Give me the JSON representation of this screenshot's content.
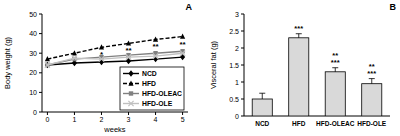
{
  "chart_data": [
    {
      "type": "line",
      "title": "A",
      "x": [
        0,
        1,
        2,
        3,
        4,
        5
      ],
      "xlim": [
        -0.2,
        5.2
      ],
      "xticks": [
        0,
        1,
        2,
        3,
        4,
        5
      ],
      "ylim": [
        0,
        50
      ],
      "yticks": [
        0,
        10,
        20,
        30,
        40,
        50
      ],
      "x_label": "weeks",
      "y_label": "Body weight (g)",
      "legend": "lower right",
      "series": [
        {
          "name": "NCD",
          "color": "#000000",
          "marker": "diamond",
          "line_style": "solid",
          "values": [
            24,
            25,
            25.5,
            26,
            27,
            28
          ]
        },
        {
          "name": "HFD",
          "color": "#000000",
          "marker": "triangle",
          "line_style": "dashed",
          "values": [
            27,
            30,
            33,
            35,
            37,
            38.5
          ]
        },
        {
          "name": "HFD-OLEAC",
          "color": "#808080",
          "marker": "square",
          "line_style": "solid",
          "values": [
            24,
            27,
            28,
            29,
            30,
            31
          ]
        },
        {
          "name": "HFD-OLE",
          "color": "#c0c0c0",
          "marker": "x",
          "line_style": "solid",
          "values": [
            24,
            27.5,
            27,
            28,
            28.5,
            30
          ]
        }
      ],
      "significance": [
        null,
        null,
        "*",
        "**",
        "**",
        "**"
      ]
    },
    {
      "type": "bar",
      "title": "B",
      "categories": [
        "NCD",
        "HFD",
        "HFD-OLEAC",
        "HFD-OLE"
      ],
      "values": [
        0.5,
        2.3,
        1.3,
        0.95
      ],
      "error": [
        0.17,
        0.12,
        0.12,
        0.15
      ],
      "color": "#d9d9d9",
      "ylim": [
        0,
        3
      ],
      "yticks": [
        0,
        0.5,
        1,
        1.5,
        2,
        2.5,
        3
      ],
      "y_label": "Visceral fat (g)",
      "significance": [
        [],
        [
          "***"
        ],
        [
          "**",
          "***"
        ],
        [
          "**",
          "***"
        ]
      ]
    }
  ]
}
